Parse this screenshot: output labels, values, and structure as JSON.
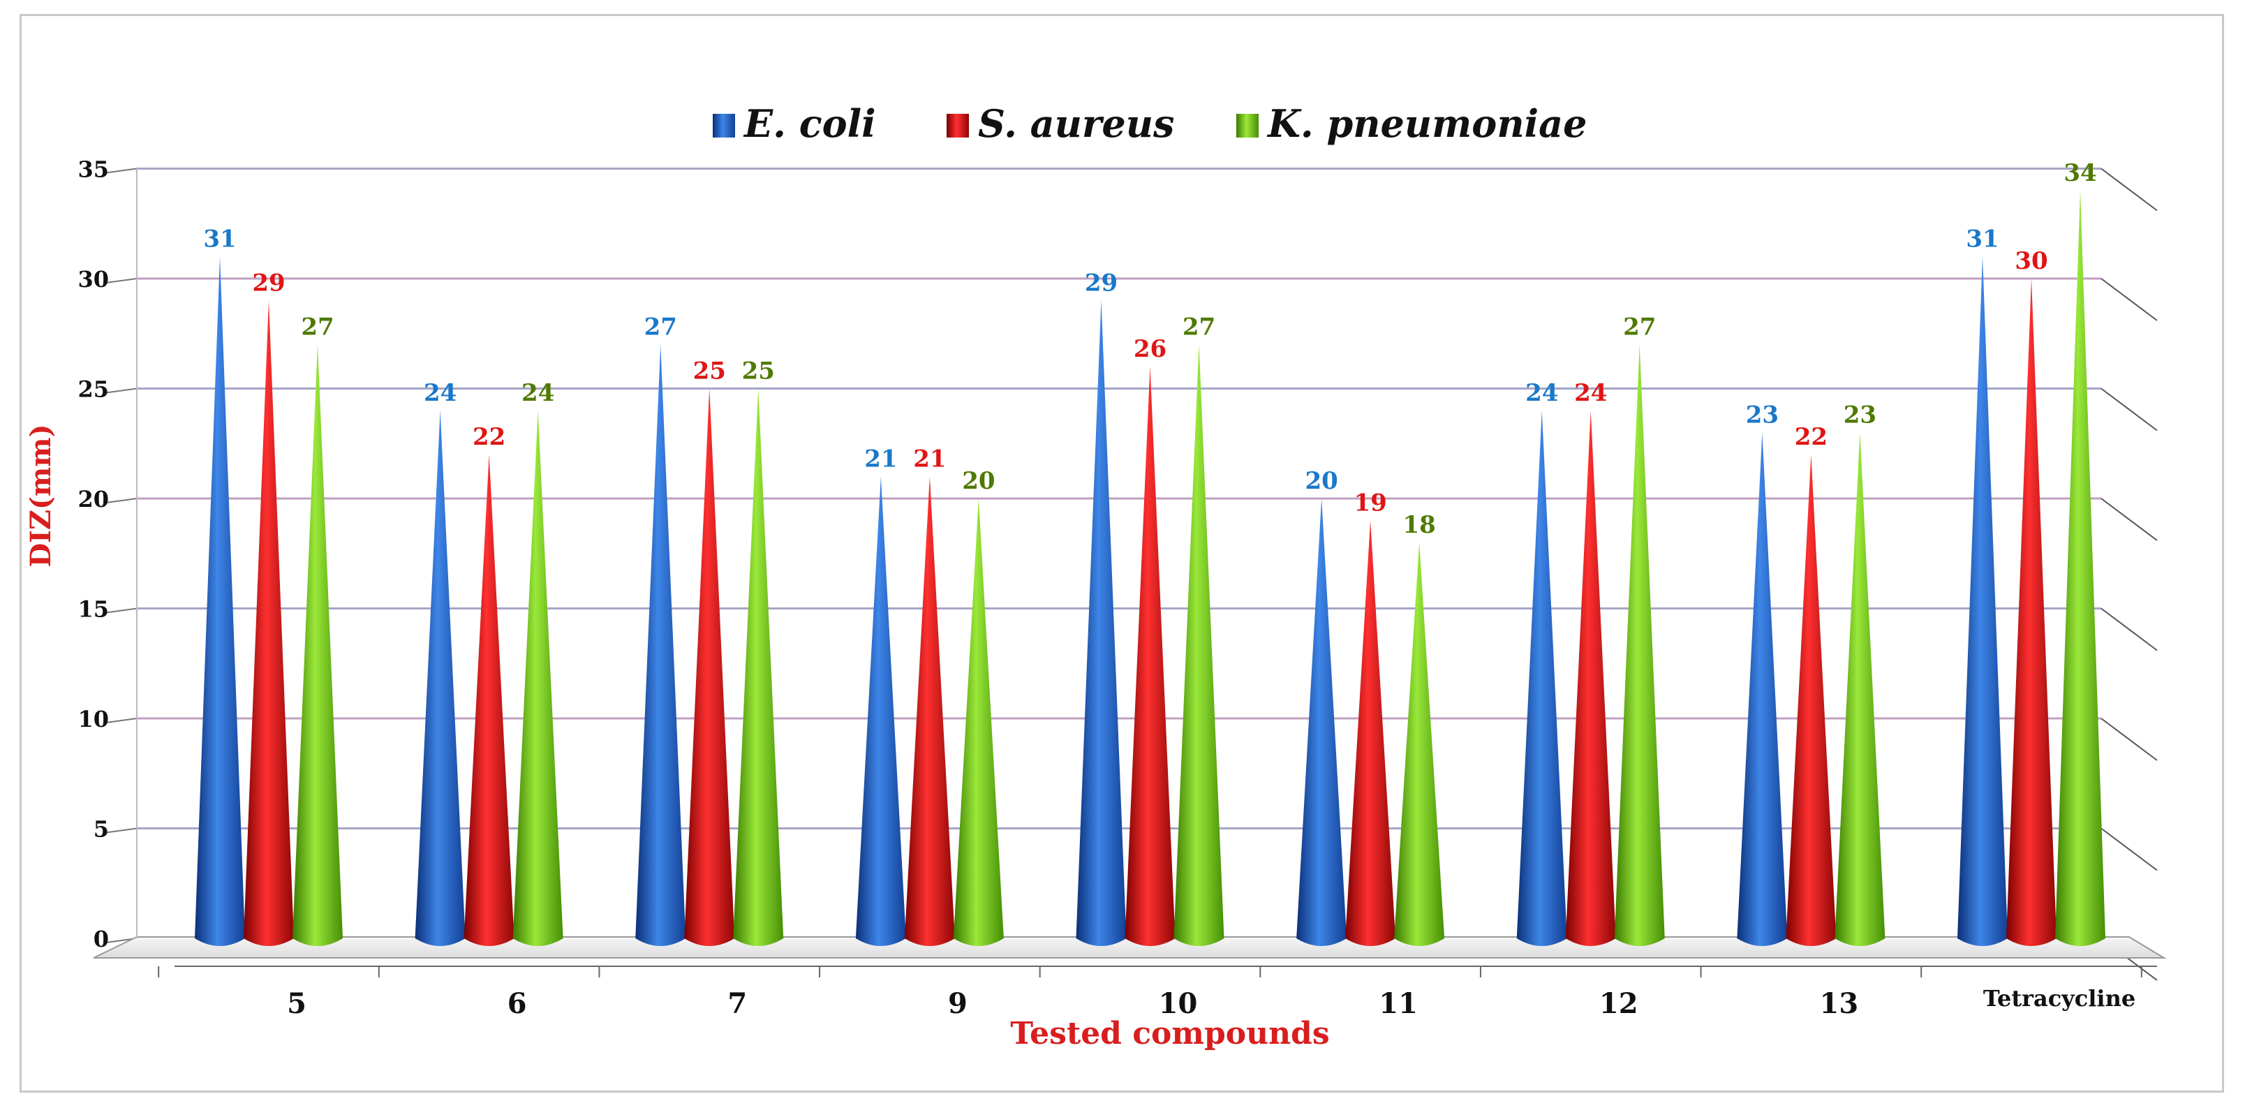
{
  "chart_data": {
    "type": "bar",
    "title": "",
    "xlabel": "Tested compounds",
    "ylabel": "DIZ(mm)",
    "ylim": [
      0,
      35
    ],
    "yticks": [
      0,
      5,
      10,
      15,
      20,
      25,
      30,
      35
    ],
    "grid": true,
    "legend_position": "top-center",
    "categories": [
      "5",
      "6",
      "7",
      "9",
      "10",
      "11",
      "12",
      "13",
      "Tetracycline"
    ],
    "series": [
      {
        "name": "E. coli",
        "color": "#1f5fc4",
        "label_color": "#1a78c9",
        "values": [
          31,
          24,
          27,
          21,
          29,
          20,
          24,
          23,
          31
        ]
      },
      {
        "name": "S. aureus",
        "color": "#d41010",
        "label_color": "#e01515",
        "values": [
          29,
          22,
          25,
          21,
          26,
          19,
          24,
          22,
          30
        ]
      },
      {
        "name": "K. pneumoniae",
        "color": "#6ac416",
        "label_color": "#4f7a00",
        "values": [
          27,
          24,
          25,
          20,
          27,
          18,
          27,
          23,
          34
        ]
      }
    ]
  }
}
